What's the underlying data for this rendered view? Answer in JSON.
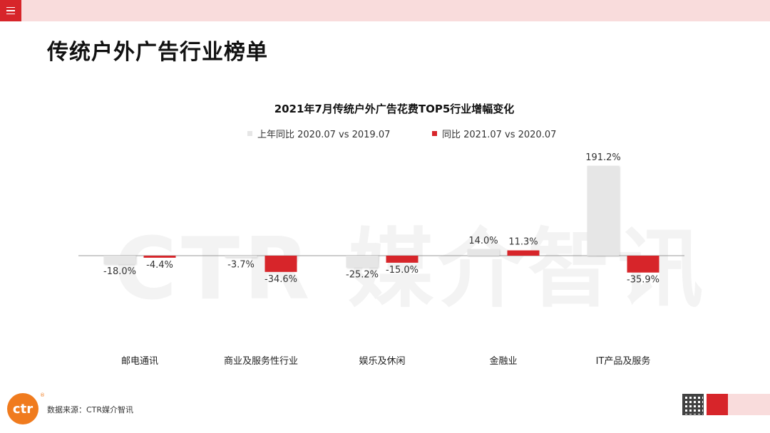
{
  "page": {
    "title": "传统户外广告行业榜单",
    "watermark": "CTR 媒介智讯",
    "source": "数据来源：CTR媒介智讯",
    "logo_text": "ctr",
    "logo_mark": "®"
  },
  "colors": {
    "accent": "#d7252a",
    "topbar": "#f9dcdc",
    "series_prev": "#e6e6e6",
    "series_curr": "#d7252a"
  },
  "chart_data": {
    "type": "bar",
    "title": "2021年7月传统户外广告花费TOP5行业增幅变化",
    "categories": [
      "邮电通讯",
      "商业及服务性行业",
      "娱乐及休闲",
      "金融业",
      "IT产品及服务"
    ],
    "series": [
      {
        "name": "上年同比 2020.07 vs 2019.07",
        "values": [
          -18.0,
          -3.7,
          -25.2,
          14.0,
          191.2
        ],
        "labels": [
          "-18.0%",
          "-3.7%",
          "-25.2%",
          "14.0%",
          "191.2%"
        ],
        "color": "#e6e6e6"
      },
      {
        "name": "同比 2021.07 vs 2020.07",
        "values": [
          -4.4,
          -34.6,
          -15.0,
          11.3,
          -35.9
        ],
        "labels": [
          "-4.4%",
          "-34.6%",
          "-15.0%",
          "11.3%",
          "-35.9%"
        ],
        "color": "#d7252a"
      }
    ],
    "unit": "%",
    "legend_position": "top",
    "grid": false
  }
}
